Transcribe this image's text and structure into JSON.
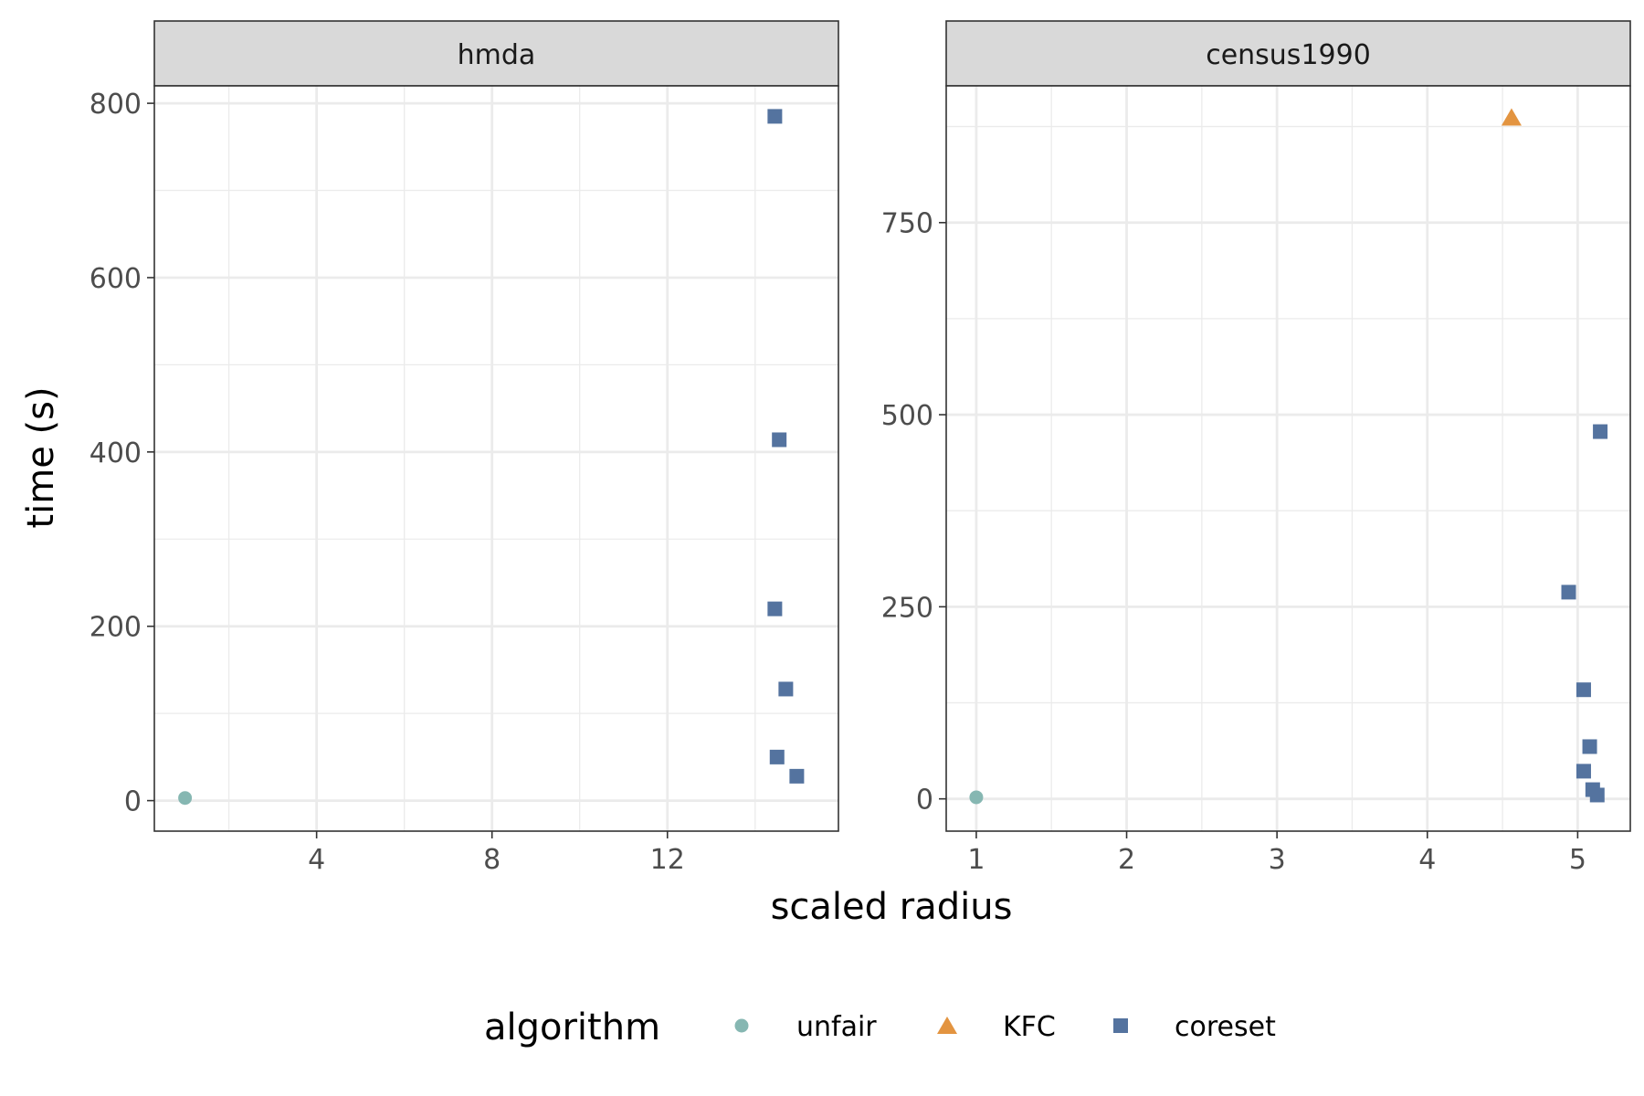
{
  "chart_data": {
    "type": "scatter",
    "xlabel": "scaled radius",
    "ylabel": "time (s)",
    "legend": {
      "title": "algorithm",
      "placement": "bottom",
      "items": [
        {
          "name": "unfair",
          "shape": "circle",
          "color": "#86b7b2"
        },
        {
          "name": "KFC",
          "shape": "triangle",
          "color": "#e39440"
        },
        {
          "name": "coreset",
          "shape": "square",
          "color": "#54739f"
        }
      ]
    },
    "grid": true,
    "panels": [
      {
        "strip": "hmda",
        "xlim": [
          0.3,
          15.9
        ],
        "ylim": [
          -35,
          820
        ],
        "xticks": [
          4,
          8,
          12
        ],
        "xtick_labels": [
          "4",
          "8",
          "12"
        ],
        "x_minor": [
          2,
          6,
          10,
          14
        ],
        "yticks": [
          0,
          200,
          400,
          600,
          800
        ],
        "ytick_labels": [
          "0",
          "200",
          "400",
          "600",
          "800"
        ],
        "y_minor": [
          100,
          300,
          500,
          700
        ],
        "series": [
          {
            "name": "unfair",
            "points": [
              {
                "x": 1.0,
                "y": 3
              }
            ]
          },
          {
            "name": "KFC",
            "points": []
          },
          {
            "name": "coreset",
            "points": [
              {
                "x": 14.45,
                "y": 785
              },
              {
                "x": 14.55,
                "y": 414
              },
              {
                "x": 14.45,
                "y": 220
              },
              {
                "x": 14.7,
                "y": 128
              },
              {
                "x": 14.5,
                "y": 50
              },
              {
                "x": 14.95,
                "y": 28
              }
            ]
          }
        ]
      },
      {
        "strip": "census1990",
        "xlim": [
          0.8,
          5.35
        ],
        "ylim": [
          -42,
          928
        ],
        "xticks": [
          1,
          2,
          3,
          4,
          5
        ],
        "xtick_labels": [
          "1",
          "2",
          "3",
          "4",
          "5"
        ],
        "x_minor": [
          1.5,
          2.5,
          3.5,
          4.5
        ],
        "yticks": [
          0,
          250,
          500,
          750
        ],
        "ytick_labels": [
          "0",
          "250",
          "500",
          "750"
        ],
        "y_minor": [
          125,
          375,
          625,
          875
        ],
        "series": [
          {
            "name": "unfair",
            "points": [
              {
                "x": 1.0,
                "y": 2
              }
            ]
          },
          {
            "name": "KFC",
            "points": [
              {
                "x": 4.56,
                "y": 887
              }
            ]
          },
          {
            "name": "coreset",
            "points": [
              {
                "x": 5.15,
                "y": 478
              },
              {
                "x": 4.94,
                "y": 269
              },
              {
                "x": 5.04,
                "y": 142
              },
              {
                "x": 5.08,
                "y": 68
              },
              {
                "x": 5.04,
                "y": 36
              },
              {
                "x": 5.1,
                "y": 12
              },
              {
                "x": 5.13,
                "y": 5
              }
            ]
          }
        ]
      }
    ]
  }
}
